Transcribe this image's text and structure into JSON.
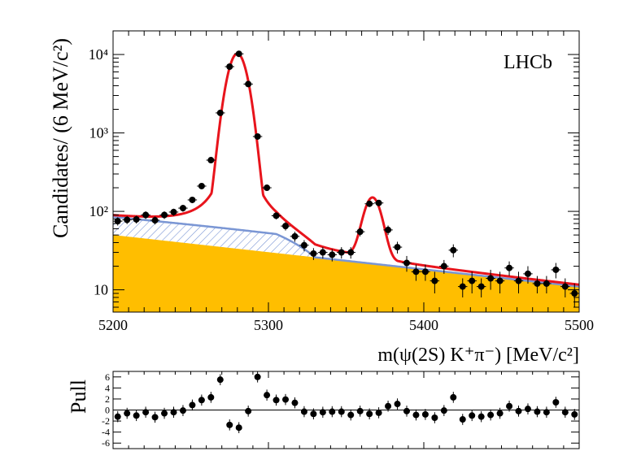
{
  "chart_data": [
    {
      "type": "scatter",
      "title": "",
      "annotation": "LHCb",
      "xlabel": "m(ψ(2S) K⁺π⁻) [MeV/c²]",
      "ylabel": "Candidates/ (6 MeV/c²)",
      "xlim": [
        5200,
        5500
      ],
      "ylim": [
        5.2,
        20000
      ],
      "yscale": "log",
      "xticks": [
        5200,
        5300,
        5400,
        5500
      ],
      "yticks": [
        {
          "value": 10,
          "label": "10"
        },
        {
          "value": 100,
          "label": "10²"
        },
        {
          "value": 1000,
          "label": "10³"
        },
        {
          "value": 10000,
          "label": "10⁴"
        }
      ],
      "grid": false,
      "bin_width": 6,
      "data_points": {
        "x": [
          5203,
          5209,
          5215,
          5221,
          5227,
          5233,
          5239,
          5245,
          5251,
          5257,
          5263,
          5269,
          5275,
          5281,
          5287,
          5293,
          5299,
          5305,
          5311,
          5317,
          5323,
          5329,
          5335,
          5341,
          5347,
          5353,
          5359,
          5365,
          5371,
          5377,
          5383,
          5389,
          5395,
          5401,
          5407,
          5413,
          5419,
          5425,
          5431,
          5437,
          5443,
          5449,
          5455,
          5461,
          5467,
          5473,
          5479,
          5485,
          5491,
          5497
        ],
        "y": [
          75,
          78,
          79,
          90,
          77,
          90,
          98,
          110,
          140,
          210,
          450,
          1800,
          7000,
          10200,
          4200,
          900,
          200,
          88,
          65,
          48,
          37,
          29,
          30,
          28,
          30,
          30,
          55,
          125,
          128,
          58,
          35,
          22,
          17,
          17,
          13,
          20,
          32,
          11,
          13,
          11,
          14,
          13,
          19,
          13,
          16,
          12,
          12,
          18,
          11,
          9
        ],
        "yerr": [
          9,
          9,
          9,
          10,
          9,
          10,
          10,
          11,
          12,
          15,
          21,
          43,
          84,
          101,
          65,
          30,
          14,
          9,
          8,
          7,
          6,
          5,
          5,
          5,
          5,
          5,
          7,
          11,
          11,
          8,
          6,
          5,
          4,
          4,
          4,
          4,
          6,
          3,
          4,
          3,
          4,
          4,
          4,
          4,
          4,
          3,
          3,
          4,
          3,
          3
        ]
      },
      "series": [
        {
          "name": "",
          "role": "total fit",
          "color": "#e8141c",
          "model": {
            "comb_start": 50,
            "comb_end": 11,
            "bkg2_start": 35,
            "bkg2_mid": 22,
            "bkg2_cut": 5305,
            "bkg2_end": 5330,
            "peak1": {
              "mean": 5280,
              "sigma": 5.5,
              "amp": 10200
            },
            "peak2": {
              "mean": 5367,
              "sigma": 5.0,
              "amp": 125
            }
          }
        },
        {
          "name": "",
          "role": "hatched background component",
          "color": "#7a96d4"
        },
        {
          "name": "",
          "role": "filled background component",
          "color": "#ffbe00"
        }
      ]
    },
    {
      "type": "scatter",
      "title": "",
      "ylabel": "Pull",
      "xlim": [
        5200,
        5500
      ],
      "ylim": [
        -7,
        7
      ],
      "yticks": [
        6,
        4,
        2,
        0,
        -2,
        -4,
        -6
      ],
      "grid": false,
      "x": [
        5203,
        5209,
        5215,
        5221,
        5227,
        5233,
        5239,
        5245,
        5251,
        5257,
        5263,
        5269,
        5275,
        5281,
        5287,
        5293,
        5299,
        5305,
        5311,
        5317,
        5323,
        5329,
        5335,
        5341,
        5347,
        5353,
        5359,
        5365,
        5371,
        5377,
        5383,
        5389,
        5395,
        5401,
        5407,
        5413,
        5419,
        5425,
        5431,
        5437,
        5443,
        5449,
        5455,
        5461,
        5467,
        5473,
        5479,
        5485,
        5491,
        5497
      ],
      "pull": [
        -1.2,
        -0.6,
        -1.0,
        -0.4,
        -1.3,
        -0.6,
        -0.4,
        -0.1,
        0.9,
        1.8,
        2.3,
        5.5,
        -2.7,
        -3.2,
        -0.2,
        6.0,
        2.7,
        1.8,
        1.9,
        1.3,
        -0.3,
        -0.7,
        -0.4,
        -0.3,
        -0.3,
        -0.9,
        -0.2,
        -0.7,
        -0.5,
        0.7,
        1.1,
        -0.2,
        -0.9,
        -0.8,
        -1.4,
        -0.1,
        2.3,
        -1.7,
        -1.0,
        -1.2,
        -0.9,
        -0.6,
        0.7,
        -0.2,
        0.2,
        -0.3,
        -0.4,
        1.4,
        -0.4,
        -0.8
      ]
    }
  ]
}
